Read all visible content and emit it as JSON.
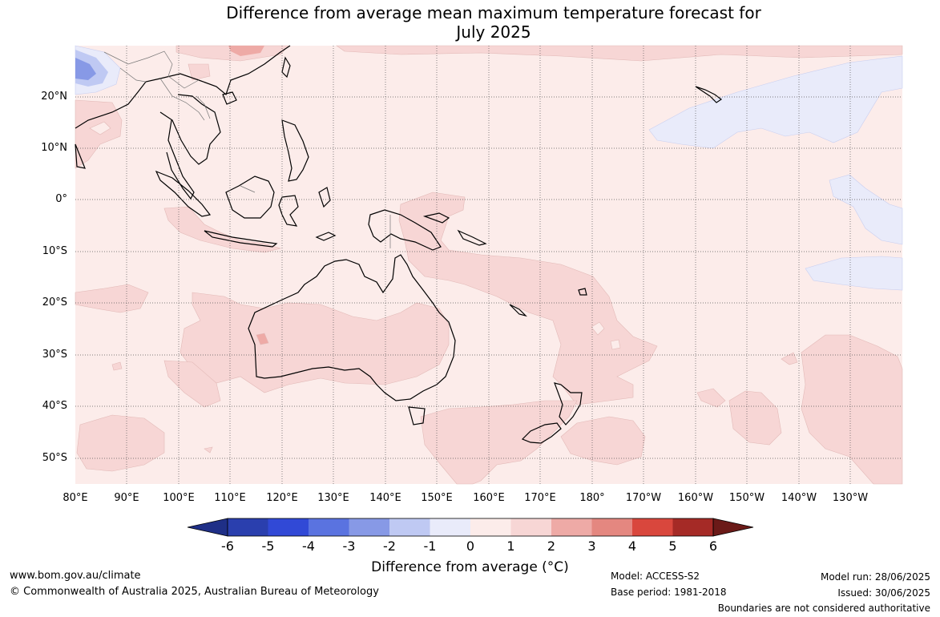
{
  "title_line1": "Difference from average mean maximum temperature forecast for",
  "title_line2": "July 2025",
  "lat_labels": [
    "20°N",
    "10°N",
    "0°",
    "10°S",
    "20°S",
    "30°S",
    "40°S",
    "50°S"
  ],
  "lon_labels": [
    "80°E",
    "90°E",
    "100°E",
    "110°E",
    "120°E",
    "130°E",
    "140°E",
    "150°E",
    "160°E",
    "170°E",
    "180°",
    "170°W",
    "160°W",
    "150°W",
    "140°W",
    "130°W"
  ],
  "colorbar": {
    "ticks": [
      "-6",
      "-5",
      "-4",
      "-3",
      "-2",
      "-1",
      "0",
      "1",
      "2",
      "3",
      "4",
      "5",
      "6"
    ],
    "colors": [
      "#1f2f87",
      "#2a3fae",
      "#3149d6",
      "#5a73e0",
      "#8799e6",
      "#bfc9f3",
      "#e9ebfa",
      "#fcecea",
      "#f7d6d5",
      "#eeaaa6",
      "#e48780",
      "#d9473d",
      "#a52a26",
      "#6b1a18"
    ],
    "label": "Difference from average (°C)"
  },
  "footer": {
    "website": "www.bom.gov.au/climate",
    "copyright": "© Commonwealth of Australia 2025, Australian Bureau of Meteorology",
    "model": "Model: ACCESS-S2",
    "base_period": "Base period: 1981-2018",
    "model_run": "Model run: 28/06/2025",
    "issued": "Issued: 30/06/2025",
    "disclaimer": "Boundaries are not considered authoritative"
  }
}
